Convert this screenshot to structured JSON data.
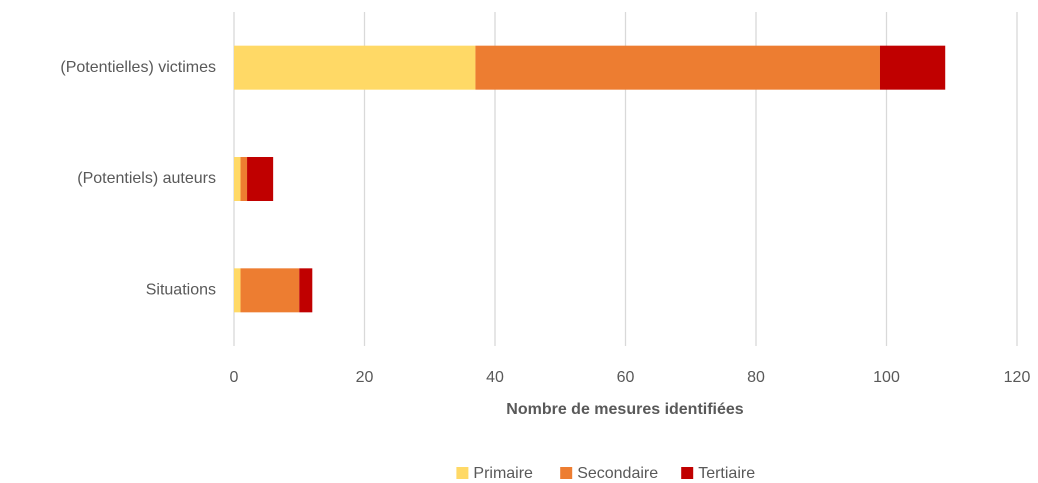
{
  "chart_data": {
    "type": "bar",
    "orientation": "horizontal",
    "stacked": true,
    "categories": [
      "(Potentielles) victimes",
      "(Potentiels) auteurs",
      "Situations"
    ],
    "series": [
      {
        "name": "Primaire",
        "color": "#ffd966",
        "values": [
          37,
          1,
          1
        ]
      },
      {
        "name": "Secondaire",
        "color": "#ed7d31",
        "values": [
          62,
          1,
          9
        ]
      },
      {
        "name": "Tertiaire",
        "color": "#c00000",
        "values": [
          10,
          4,
          2
        ]
      }
    ],
    "xlabel": "Nombre de mesures identifiées",
    "xlim": [
      0,
      120
    ],
    "xticks": [
      0,
      20,
      40,
      60,
      80,
      100,
      120
    ],
    "grid": true,
    "legend": "bottom"
  }
}
